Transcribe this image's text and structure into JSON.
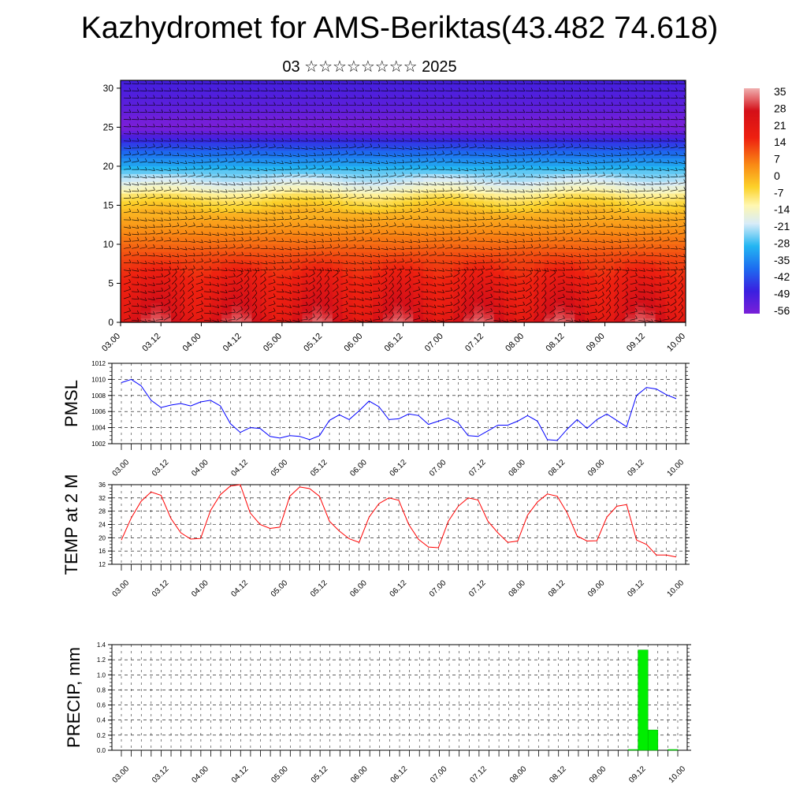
{
  "title": "Kazhydromet for AMS-Beriktas(43.482 74.618)",
  "subtitle": "03 ☆☆☆☆☆☆☆☆ 2025",
  "x_ticks": [
    "03.00",
    "03.12",
    "04.00",
    "04.12",
    "05.00",
    "05.12",
    "06.00",
    "06.12",
    "07.00",
    "07.12",
    "08.00",
    "08.12",
    "09.00",
    "09.12",
    "10.00"
  ],
  "chart_data": [
    {
      "type": "heatmap",
      "ylim": [
        0,
        31
      ],
      "y_ticks": [
        0,
        5,
        10,
        15,
        20,
        25,
        30
      ],
      "x": [
        "03.00",
        "03.12",
        "04.00",
        "04.12",
        "05.00",
        "05.12",
        "06.00",
        "06.12",
        "07.00",
        "07.12",
        "08.00",
        "08.12",
        "09.00",
        "09.12",
        "10.00"
      ],
      "colorbar_ticks": [
        35,
        28,
        21,
        14,
        7,
        0,
        -7,
        -14,
        -21,
        -28,
        -35,
        -42,
        -49,
        -56
      ],
      "vertical_profile": {
        "height": [
          0,
          1,
          3,
          5,
          8,
          10,
          12,
          14,
          16,
          17,
          18,
          19,
          20,
          21,
          22,
          23,
          24,
          25,
          26,
          27,
          28,
          30,
          31
        ],
        "value": [
          28,
          26,
          24,
          22,
          17,
          13,
          9,
          4,
          -3,
          -10,
          -16,
          -22,
          -30,
          -36,
          -42,
          -47,
          -54,
          -58,
          -57,
          -55,
          -54,
          -52,
          -51
        ]
      }
    },
    {
      "type": "line",
      "ylabel": "PMSL",
      "ylim": [
        1002,
        1012
      ],
      "y_ticks": [
        1002,
        1004,
        1006,
        1008,
        1010,
        1012
      ],
      "series": [
        {
          "color": "#0000ff",
          "values": [
            1009.6,
            1010.0,
            1009.2,
            1007.4,
            1006.5,
            1006.8,
            1007.0,
            1006.7,
            1007.2,
            1007.4,
            1006.7,
            1004.5,
            1003.4,
            1004.0,
            1003.9,
            1002.9,
            1002.7,
            1003.0,
            1002.9,
            1002.5,
            1003.0,
            1004.9,
            1005.6,
            1005.0,
            1006.1,
            1007.3,
            1006.6,
            1005.0,
            1005.1,
            1005.7,
            1005.5,
            1004.4,
            1004.8,
            1005.2,
            1004.6,
            1003.0,
            1002.9,
            1003.6,
            1004.3,
            1004.3,
            1004.8,
            1005.5,
            1004.8,
            1002.5,
            1002.4,
            1003.8,
            1005.0,
            1003.9,
            1005.0,
            1005.7,
            1004.9,
            1004.1,
            1008.0,
            1009.0,
            1008.8,
            1008.1,
            1007.6
          ]
        }
      ]
    },
    {
      "type": "line",
      "ylabel": "TEMP at 2 M",
      "ylim": [
        12,
        36
      ],
      "y_ticks": [
        12,
        16,
        20,
        24,
        28,
        32,
        36
      ],
      "series": [
        {
          "color": "#ff0000",
          "values": [
            19.3,
            26.0,
            31.0,
            33.8,
            32.8,
            25.8,
            21.5,
            19.6,
            19.8,
            28.2,
            33.0,
            35.6,
            36.0,
            27.5,
            24.0,
            22.8,
            23.2,
            32.5,
            35.3,
            34.8,
            32.5,
            25.0,
            22.0,
            19.7,
            18.6,
            26.2,
            30.3,
            32.0,
            31.3,
            24.0,
            19.5,
            17.2,
            17.0,
            25.0,
            29.5,
            32.0,
            31.4,
            25.0,
            21.5,
            18.6,
            19.0,
            26.8,
            30.8,
            33.2,
            32.5,
            27.5,
            20.5,
            19.0,
            19.1,
            26.2,
            29.5,
            30.0,
            19.3,
            18.0,
            14.8,
            14.8,
            14.2
          ]
        }
      ]
    },
    {
      "type": "bar",
      "ylabel": "PRECIP, mm",
      "ylim": [
        0,
        1.4
      ],
      "y_ticks": [
        "0.0",
        "0.2",
        "0.4",
        "0.6",
        "0.8",
        "1.0",
        "1.2",
        "1.4"
      ],
      "color": "#00ee00",
      "bars": [
        {
          "x": 51.5,
          "value": 0.01
        },
        {
          "x": 52.5,
          "value": 1.33
        },
        {
          "x": 53.5,
          "value": 0.27
        },
        {
          "x": 55.5,
          "value": 0.01
        }
      ]
    }
  ]
}
